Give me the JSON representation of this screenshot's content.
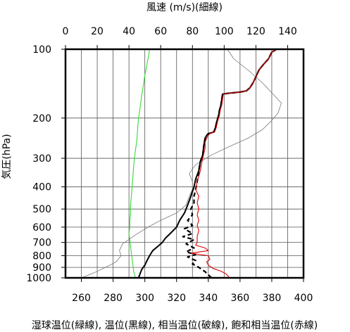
{
  "chart_data": {
    "type": "line",
    "title": "",
    "top_axis": {
      "label": "風速 (m/s)(細線)",
      "range": [
        0,
        150
      ],
      "ticks": [
        0,
        20,
        40,
        60,
        80,
        100,
        120,
        140
      ],
      "tick_labels": [
        "0",
        "20",
        "40",
        "60",
        "80",
        "100",
        "120",
        "140"
      ]
    },
    "bottom_axis": {
      "label": "湿球温位(緑線), 温位(黒線), 相当温位(破線), 飽和相当温位(赤線)",
      "range": [
        250,
        400
      ],
      "ticks": [
        260,
        280,
        300,
        320,
        340,
        360,
        380,
        400
      ],
      "tick_labels": [
        "260",
        "280",
        "300",
        "320",
        "340",
        "360",
        "380",
        "400"
      ]
    },
    "left_axis": {
      "label": "気圧(hPa)",
      "scale": "log",
      "range": [
        1000,
        100
      ],
      "ticks": [
        100,
        200,
        300,
        400,
        500,
        600,
        700,
        800,
        900,
        1000
      ],
      "tick_labels": [
        "100",
        "200",
        "300",
        "400",
        "500",
        "600",
        "700",
        "800",
        "900",
        "1000"
      ]
    },
    "grid": true,
    "series": [
      {
        "key": "wind_speed",
        "axis": "top",
        "color": "#777777",
        "dash": "solid",
        "points": [
          [
            10,
            1000
          ],
          [
            18,
            950
          ],
          [
            28,
            880
          ],
          [
            32,
            850
          ],
          [
            35,
            800
          ],
          [
            34,
            760
          ],
          [
            36,
            710
          ],
          [
            44,
            650
          ],
          [
            52,
            600
          ],
          [
            60,
            560
          ],
          [
            70,
            520
          ],
          [
            76,
            480
          ],
          [
            78,
            440
          ],
          [
            80,
            410
          ],
          [
            80,
            380
          ],
          [
            78,
            350
          ],
          [
            82,
            320
          ],
          [
            92,
            290
          ],
          [
            104,
            265
          ],
          [
            115,
            245
          ],
          [
            124,
            225
          ],
          [
            130,
            205
          ],
          [
            134,
            190
          ],
          [
            136,
            172
          ],
          [
            130,
            155
          ],
          [
            124,
            140
          ],
          [
            116,
            125
          ],
          [
            106,
            110
          ],
          [
            102,
            100
          ]
        ]
      },
      {
        "key": "wet_bulb_theta",
        "axis": "bottom",
        "color": "#33dd33",
        "dash": "solid",
        "points": [
          [
            294,
            990
          ],
          [
            293,
            940
          ],
          [
            292.5,
            880
          ],
          [
            292,
            830
          ],
          [
            291.5,
            780
          ],
          [
            291,
            730
          ],
          [
            290.5,
            680
          ],
          [
            290,
            640
          ],
          [
            290.5,
            600
          ],
          [
            290.5,
            560
          ],
          [
            291,
            520
          ],
          [
            291,
            480
          ],
          [
            291.5,
            440
          ],
          [
            292,
            400
          ],
          [
            292.5,
            360
          ],
          [
            293,
            320
          ],
          [
            294,
            280
          ],
          [
            295,
            250
          ],
          [
            295.5,
            220
          ],
          [
            296,
            200
          ],
          [
            297,
            180
          ],
          [
            298,
            160
          ],
          [
            299,
            145
          ],
          [
            300,
            130
          ],
          [
            301,
            120
          ],
          [
            302,
            110
          ],
          [
            303,
            100
          ]
        ]
      },
      {
        "key": "theta",
        "axis": "bottom",
        "color": "#000000",
        "dash": "solid",
        "points": [
          [
            296,
            1000
          ],
          [
            297,
            960
          ],
          [
            298,
            920
          ],
          [
            300,
            880
          ],
          [
            301,
            850
          ],
          [
            303,
            800
          ],
          [
            305,
            760
          ],
          [
            308,
            730
          ],
          [
            311,
            700
          ],
          [
            313,
            670
          ],
          [
            316,
            640
          ],
          [
            320,
            600
          ],
          [
            322,
            560
          ],
          [
            325,
            520
          ],
          [
            327,
            480
          ],
          [
            329,
            440
          ],
          [
            331,
            400
          ],
          [
            332,
            370
          ],
          [
            334,
            340
          ],
          [
            335,
            310
          ],
          [
            336.5,
            290
          ],
          [
            337,
            270
          ],
          [
            337.5,
            255
          ],
          [
            338,
            245
          ],
          [
            339,
            238
          ],
          [
            340,
            234
          ],
          [
            342,
            232
          ],
          [
            343.5,
            230
          ],
          [
            344.5,
            220
          ],
          [
            345.5,
            205
          ],
          [
            346.5,
            195
          ],
          [
            347,
            185
          ],
          [
            348,
            175
          ],
          [
            348.5,
            165
          ],
          [
            349,
            157
          ],
          [
            352,
            156
          ],
          [
            360,
            154
          ],
          [
            364,
            152
          ],
          [
            366,
            148
          ],
          [
            368,
            141
          ],
          [
            370,
            132
          ],
          [
            372,
            123
          ],
          [
            375,
            116
          ],
          [
            378,
            110
          ],
          [
            380,
            103
          ],
          [
            383,
            100
          ]
        ]
      },
      {
        "key": "equiv_theta",
        "axis": "bottom",
        "color": "#000000",
        "dash": "dashed",
        "points": [
          [
            342,
            1000
          ],
          [
            340,
            970
          ],
          [
            338,
            940
          ],
          [
            334,
            900
          ],
          [
            330,
            870
          ],
          [
            332,
            840
          ],
          [
            327,
            810
          ],
          [
            332,
            790
          ],
          [
            326,
            770
          ],
          [
            331,
            740
          ],
          [
            326,
            710
          ],
          [
            331,
            680
          ],
          [
            324,
            660
          ],
          [
            330,
            640
          ],
          [
            325,
            610
          ],
          [
            330,
            590
          ],
          [
            327,
            560
          ],
          [
            330,
            530
          ],
          [
            329,
            500
          ],
          [
            331,
            470
          ],
          [
            331,
            440
          ],
          [
            332,
            410
          ],
          [
            333,
            380
          ],
          [
            334,
            340
          ],
          [
            335,
            310
          ],
          [
            336.5,
            290
          ],
          [
            337,
            270
          ],
          [
            337.5,
            255
          ],
          [
            338,
            245
          ],
          [
            339,
            238
          ],
          [
            340,
            234
          ],
          [
            342,
            232
          ],
          [
            343.5,
            230
          ],
          [
            344.5,
            220
          ],
          [
            345.5,
            205
          ],
          [
            346.5,
            195
          ],
          [
            347,
            185
          ],
          [
            348,
            175
          ],
          [
            348.5,
            165
          ],
          [
            349,
            157
          ],
          [
            352,
            156
          ],
          [
            360,
            154
          ],
          [
            364,
            152
          ],
          [
            366,
            148
          ],
          [
            368,
            141
          ],
          [
            370,
            132
          ],
          [
            372,
            123
          ],
          [
            375,
            116
          ],
          [
            378,
            110
          ],
          [
            380,
            103
          ],
          [
            383,
            100
          ]
        ]
      },
      {
        "key": "sat_equiv_theta",
        "axis": "bottom",
        "color": "#dd0000",
        "dash": "solid",
        "points": [
          [
            353,
            990
          ],
          [
            351,
            960
          ],
          [
            348,
            935
          ],
          [
            343,
            910
          ],
          [
            340,
            880
          ],
          [
            339,
            850
          ],
          [
            341,
            830
          ],
          [
            340,
            800
          ],
          [
            329,
            780
          ],
          [
            340,
            760
          ],
          [
            338,
            740
          ],
          [
            332,
            720
          ],
          [
            333,
            700
          ],
          [
            333,
            660
          ],
          [
            334,
            620
          ],
          [
            333,
            590
          ],
          [
            334,
            560
          ],
          [
            333,
            530
          ],
          [
            334,
            500
          ],
          [
            333,
            470
          ],
          [
            334,
            440
          ],
          [
            332,
            410
          ],
          [
            333,
            380
          ],
          [
            335,
            340
          ],
          [
            336,
            310
          ],
          [
            337,
            290
          ],
          [
            338,
            270
          ],
          [
            338,
            255
          ],
          [
            339,
            245
          ],
          [
            340,
            238
          ],
          [
            341,
            234
          ],
          [
            342.5,
            232
          ],
          [
            344,
            230
          ],
          [
            345,
            220
          ],
          [
            346,
            205
          ],
          [
            347,
            195
          ],
          [
            347.5,
            185
          ],
          [
            348.5,
            175
          ],
          [
            349,
            165
          ],
          [
            349.5,
            157
          ],
          [
            352,
            156
          ],
          [
            360,
            154
          ],
          [
            364,
            152
          ],
          [
            366,
            148
          ],
          [
            368,
            141
          ],
          [
            370,
            132
          ],
          [
            372,
            123
          ],
          [
            375,
            116
          ],
          [
            378,
            110
          ],
          [
            380,
            103
          ],
          [
            383,
            100
          ]
        ]
      }
    ]
  }
}
